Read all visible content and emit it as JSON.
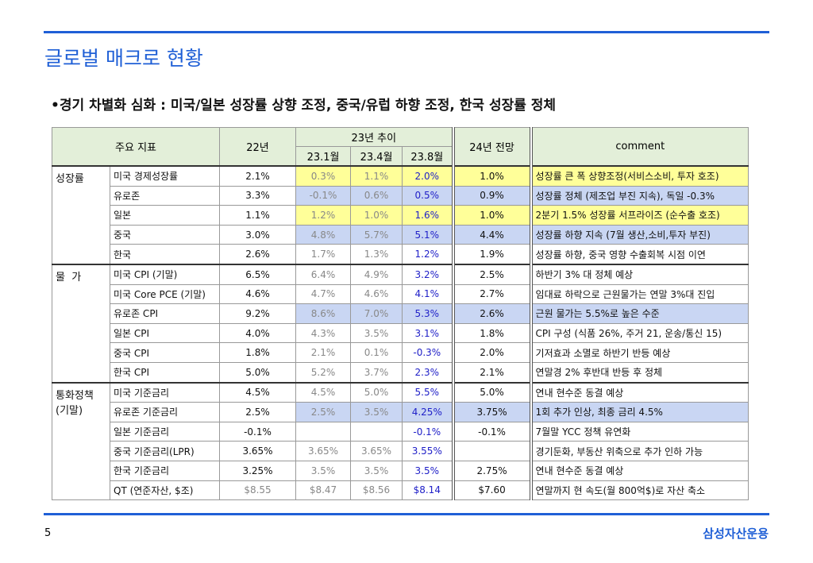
{
  "header": {
    "title": "글로벌 매크로 현황",
    "bullet": "•경기 차별화 심화 : 미국/일본 성장률 상향 조정, 중국/유럽 하향 조정, 한국 성장률 정체"
  },
  "table": {
    "headers": {
      "indicator": "주요 지표",
      "y22": "22년",
      "trend": "23년 추이",
      "months": [
        "23.1월",
        "23.4월",
        "23.8월"
      ],
      "y24": "24년 전망",
      "comment": "comment"
    },
    "groups": [
      {
        "label": "성장률",
        "rows": [
          {
            "cells": [
              "미국 경제성장률",
              "2.1%",
              "0.3%",
              "1.1%",
              "2.0%",
              "1.0%",
              "성장률 큰 폭 상향조정(서비스소비, 투자 호조)"
            ],
            "highlight": "#ffff99"
          },
          {
            "cells": [
              "유로존",
              "3.3%",
              "-0.1%",
              "0.6%",
              "0.5%",
              "0.9%",
              "성장률 정체 (제조업 부진 지속), 독일 -0.3%"
            ],
            "highlight": "#c9d6f3"
          },
          {
            "cells": [
              "일본",
              "1.1%",
              "1.2%",
              "1.0%",
              "1.6%",
              "1.0%",
              "2분기 1.5% 성장률 서프라이즈 (순수출 호조)"
            ],
            "highlight": "#ffff99"
          },
          {
            "cells": [
              "중국",
              "3.0%",
              "4.8%",
              "5.7%",
              "5.1%",
              "4.4%",
              "성장률 하향 지속 (7월 생산,소비,투자 부진)"
            ],
            "highlight": "#c9d6f3"
          },
          {
            "cells": [
              "한국",
              "2.6%",
              "1.7%",
              "1.3%",
              "1.2%",
              "1.9%",
              "성장률 하향, 중국 영향 수출회복 시점 이연"
            ],
            "highlight": null
          }
        ]
      },
      {
        "label": "물  가",
        "rows": [
          {
            "cells": [
              "미국 CPI (기말)",
              "6.5%",
              "6.4%",
              "4.9%",
              "3.2%",
              "2.5%",
              "하반기 3% 대 정체 예상"
            ],
            "highlight": null
          },
          {
            "cells": [
              "미국 Core PCE (기말)",
              "4.6%",
              "4.7%",
              "4.6%",
              "4.1%",
              "2.7%",
              "임대료 하락으로 근원물가는 연말 3%대 진입"
            ],
            "highlight": null
          },
          {
            "cells": [
              "유로존 CPI",
              "9.2%",
              "8.6%",
              "7.0%",
              "5.3%",
              "2.6%",
              "근원 물가는 5.5%로 높은 수준"
            ],
            "highlight": "#c9d6f3"
          },
          {
            "cells": [
              "일본 CPI",
              "4.0%",
              "4.3%",
              "3.5%",
              "3.1%",
              "1.8%",
              "CPI 구성 (식품 26%, 주거 21, 운송/통신 15)"
            ],
            "highlight": null
          },
          {
            "cells": [
              "중국 CPI",
              "1.8%",
              "2.1%",
              "0.1%",
              "-0.3%",
              "2.0%",
              "기저효과 소멸로 하반기 반등 예상"
            ],
            "highlight": null
          },
          {
            "cells": [
              "한국 CPI",
              "5.0%",
              "5.2%",
              "3.7%",
              "2.3%",
              "2.1%",
              "연말경 2% 후반대 반등 후 정체"
            ],
            "highlight": null
          }
        ]
      },
      {
        "label": "통화정책\n(기말)",
        "rows": [
          {
            "cells": [
              "미국 기준금리",
              "4.5%",
              "4.5%",
              "5.0%",
              "5.5%",
              "5.0%",
              "연내 현수준 동결 예상"
            ],
            "highlight": null
          },
          {
            "cells": [
              "유로존 기준금리",
              "2.5%",
              "2.5%",
              "3.5%",
              "4.25%",
              "3.75%",
              "1회 추가 인상, 최종 금리 4.5%"
            ],
            "highlight": "#c9d6f3"
          },
          {
            "cells": [
              "일본 기준금리",
              "-0.1%",
              null,
              null,
              "-0.1%",
              "-0.1%",
              "7월말 YCC 정책 유연화"
            ],
            "highlight": null
          },
          {
            "cells": [
              "중국 기준금리(LPR)",
              "3.65%",
              "3.65%",
              "3.65%",
              "3.55%",
              null,
              "경기둔화, 부동산 위축으로 추가 인하 가능"
            ],
            "highlight": null
          },
          {
            "cells": [
              "한국 기준금리",
              "3.25%",
              "3.5%",
              "3.5%",
              "3.5%",
              "2.75%",
              "연내 현수준 동결 예상"
            ],
            "highlight": null
          },
          {
            "cells": [
              "QT (연준자산, $조)",
              "$8.55",
              "$8.47",
              "$8.56",
              "$8.14",
              "$7.60",
              "연말까지 현 속도(월 800억$)로 자산 축소"
            ],
            "highlight": null
          }
        ]
      }
    ]
  },
  "footer": {
    "page": "5",
    "brand": "삼성자산운용"
  }
}
